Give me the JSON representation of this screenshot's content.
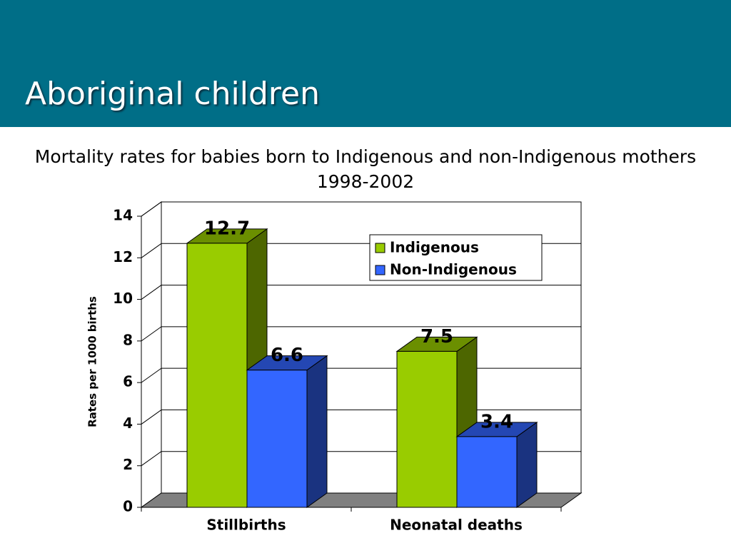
{
  "header": {
    "title": "Aboriginal children"
  },
  "chart_data": {
    "type": "bar",
    "title": "Mortality rates for babies born to Indigenous and non-Indigenous mothers 1998-2002",
    "y_label": "Rates per 1000 births",
    "categories": [
      "Stillbirths",
      "Neonatal deaths"
    ],
    "series": [
      {
        "name": "Indigenous",
        "color": "#99cc00",
        "values": [
          12.7,
          7.5
        ]
      },
      {
        "name": "Non-Indigenous",
        "color": "#3366ff",
        "values": [
          6.6,
          3.4
        ]
      }
    ],
    "ylim": [
      0,
      14
    ],
    "yticks": [
      0,
      2,
      4,
      6,
      8,
      10,
      12,
      14
    ],
    "grid": true,
    "legend": "upper right"
  }
}
